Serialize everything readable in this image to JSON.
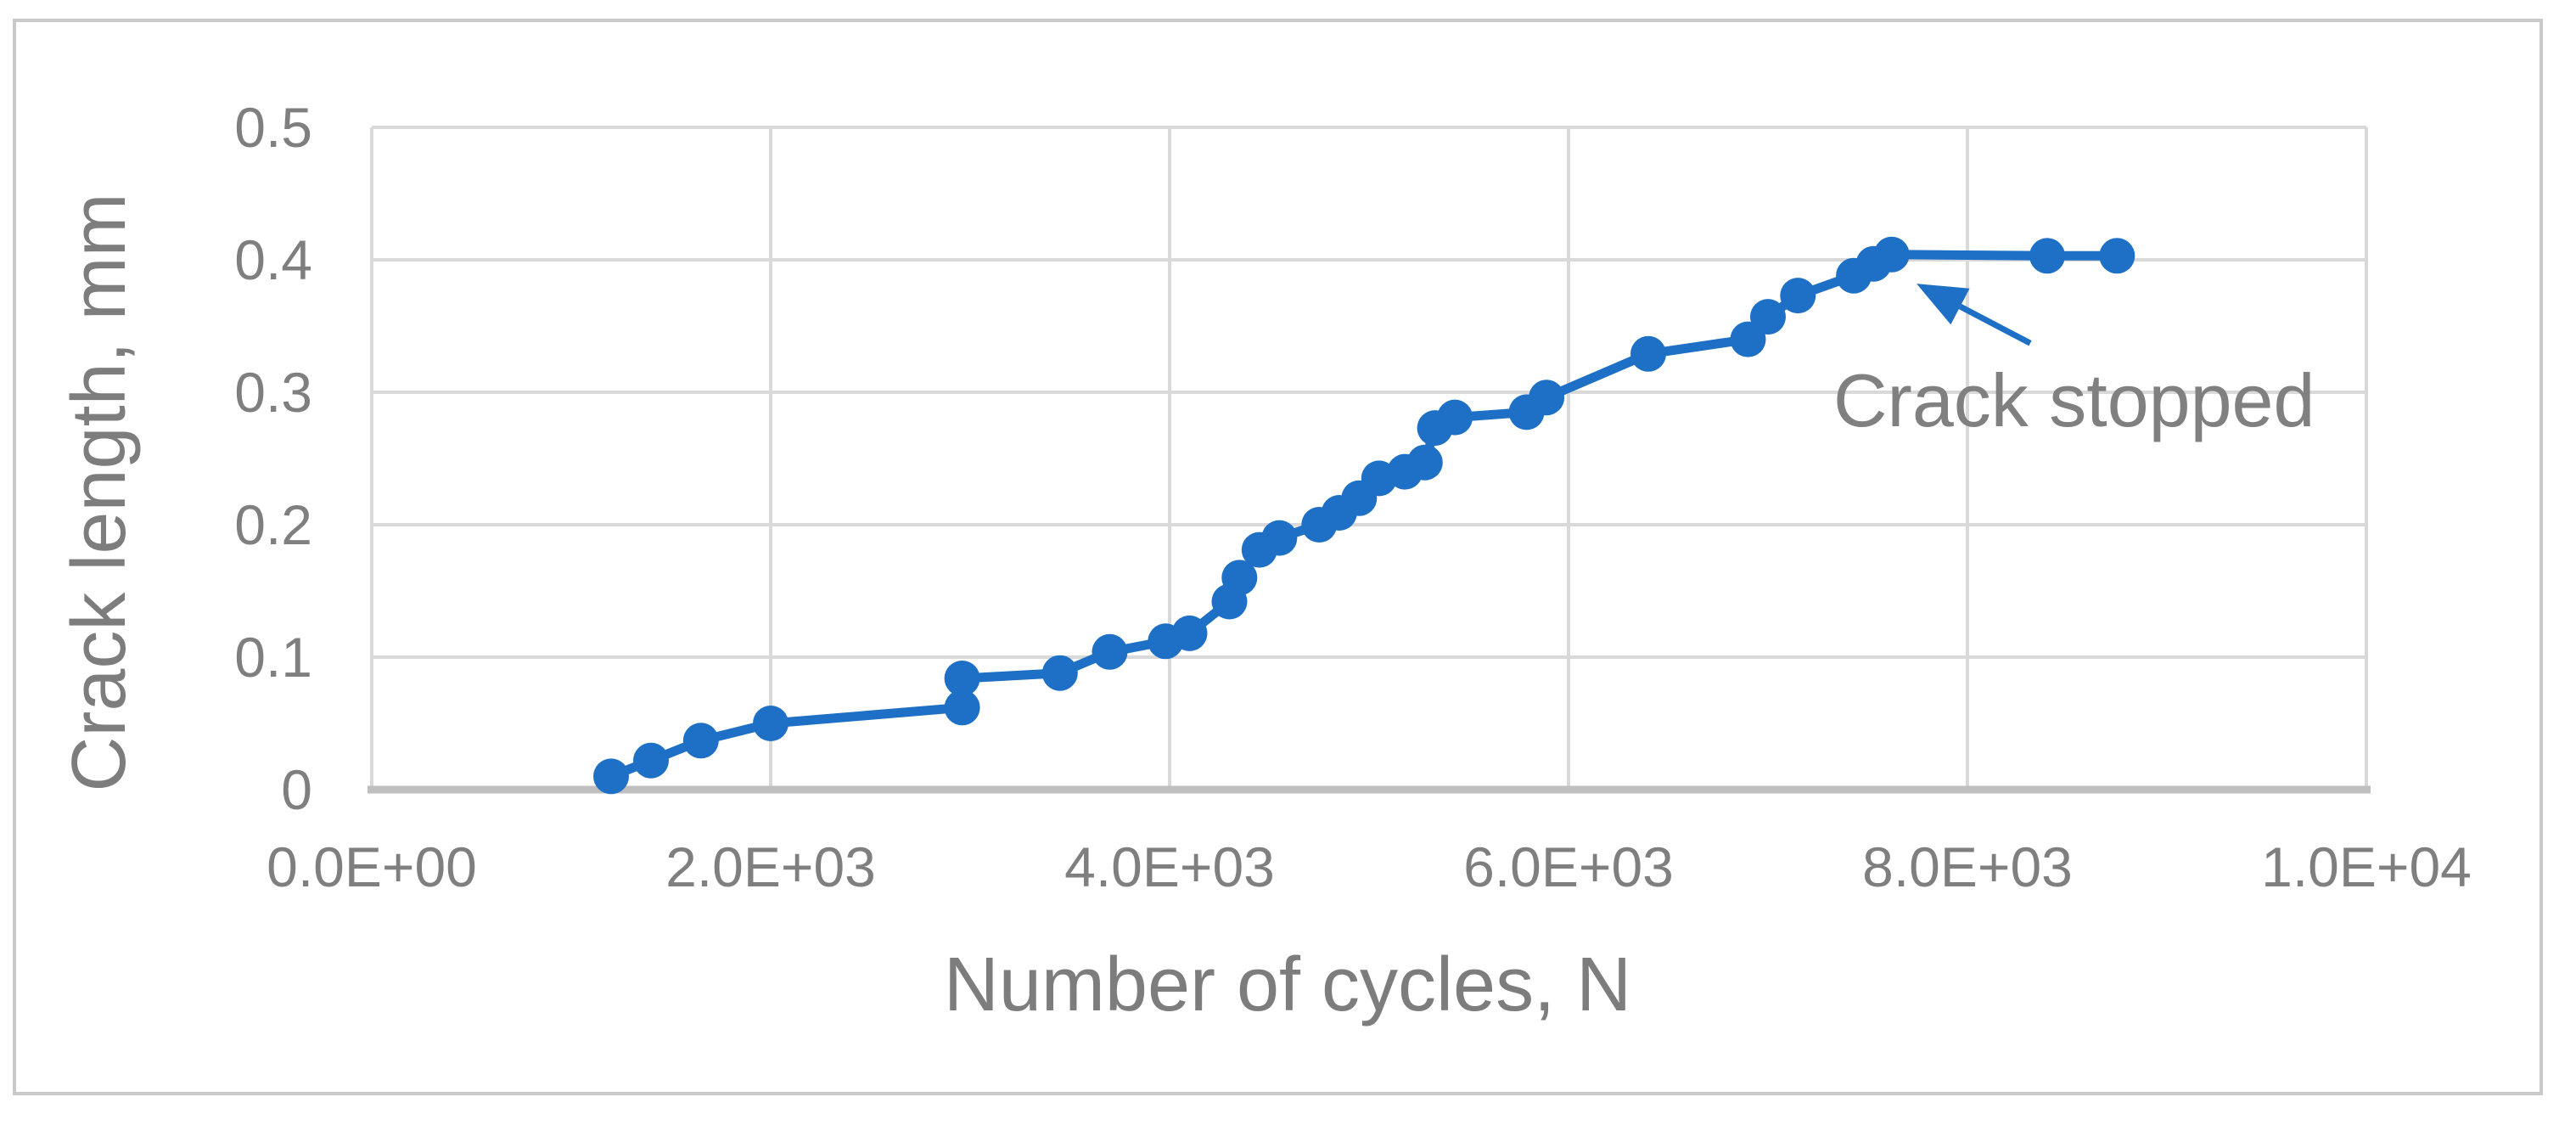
{
  "figure": {
    "background": "#ffffff",
    "border_color": "#c9c9c9"
  },
  "chart_data": {
    "type": "line",
    "title": "",
    "xlabel": "Number of cycles, N",
    "ylabel": "Crack length, mm",
    "xlim": [
      0,
      10000
    ],
    "ylim": [
      0,
      0.5
    ],
    "grid": true,
    "legend": "none",
    "gridline_color": "#d9d9d9",
    "axis_line_color": "#bfbfbf",
    "tick_label_color": "#7f7f7f",
    "axis_title_color": "#7d7d7d",
    "x_ticks": [
      {
        "value": 0,
        "label": "0.0E+00"
      },
      {
        "value": 2000,
        "label": "2.0E+03"
      },
      {
        "value": 4000,
        "label": "4.0E+03"
      },
      {
        "value": 6000,
        "label": "6.0E+03"
      },
      {
        "value": 8000,
        "label": "8.0E+03"
      },
      {
        "value": 10000,
        "label": "1.0E+04"
      }
    ],
    "y_ticks": [
      {
        "value": 0,
        "label": "0"
      },
      {
        "value": 0.1,
        "label": "0.1"
      },
      {
        "value": 0.2,
        "label": "0.2"
      },
      {
        "value": 0.3,
        "label": "0.3"
      },
      {
        "value": 0.4,
        "label": "0.4"
      },
      {
        "value": 0.5,
        "label": "0.5"
      }
    ],
    "series": [
      {
        "name": "crack-length-vs-cycles",
        "color": "#1e70c6",
        "marker": "circle",
        "points": [
          [
            1200,
            0.01
          ],
          [
            1400,
            0.022
          ],
          [
            1650,
            0.037
          ],
          [
            2000,
            0.05
          ],
          [
            2960,
            0.062
          ],
          [
            2960,
            0.084
          ],
          [
            3450,
            0.088
          ],
          [
            3700,
            0.104
          ],
          [
            3980,
            0.112
          ],
          [
            4100,
            0.118
          ],
          [
            4300,
            0.142
          ],
          [
            4350,
            0.16
          ],
          [
            4450,
            0.181
          ],
          [
            4550,
            0.19
          ],
          [
            4750,
            0.2
          ],
          [
            4850,
            0.209
          ],
          [
            4950,
            0.22
          ],
          [
            5050,
            0.235
          ],
          [
            5180,
            0.24
          ],
          [
            5280,
            0.247
          ],
          [
            5330,
            0.273
          ],
          [
            5430,
            0.281
          ],
          [
            5790,
            0.285
          ],
          [
            5890,
            0.296
          ],
          [
            6400,
            0.329
          ],
          [
            6900,
            0.34
          ],
          [
            7000,
            0.357
          ],
          [
            7150,
            0.373
          ],
          [
            7430,
            0.388
          ],
          [
            7530,
            0.397
          ],
          [
            7620,
            0.404
          ],
          [
            8400,
            0.403
          ],
          [
            8750,
            0.403
          ]
        ]
      }
    ],
    "annotation": {
      "text": "Crack stopped",
      "text_color": "#808080",
      "text_pos": [
        7330,
        0.32
      ],
      "arrow_from": [
        8315,
        0.337
      ],
      "arrow_to": [
        7745,
        0.382
      ],
      "arrow_color": "#1e70c6"
    }
  }
}
